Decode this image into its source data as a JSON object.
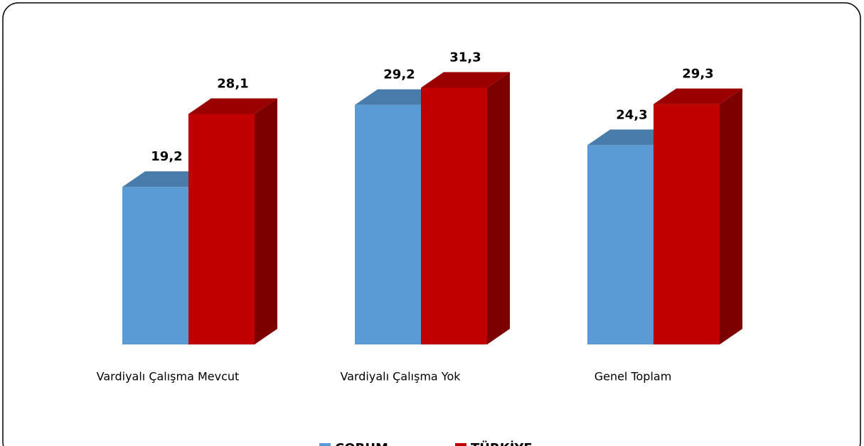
{
  "chart_data": {
    "type": "bar3d",
    "categories": [
      "Vardiyalı Çalışma Mevcut",
      "Vardiyalı Çalışma Yok",
      "Genel Toplam"
    ],
    "series": [
      {
        "name": "ÇORUM",
        "color": "#5b9bd5",
        "values": [
          19.2,
          29.2,
          24.3
        ],
        "value_labels": [
          "19,2",
          "29,2",
          "24,3"
        ]
      },
      {
        "name": "TÜRKİYE",
        "color": "#c00000",
        "values": [
          28.1,
          31.3,
          29.3
        ],
        "value_labels": [
          "28,1",
          "31,3",
          "29,3"
        ]
      }
    ],
    "legend": "bottom"
  }
}
